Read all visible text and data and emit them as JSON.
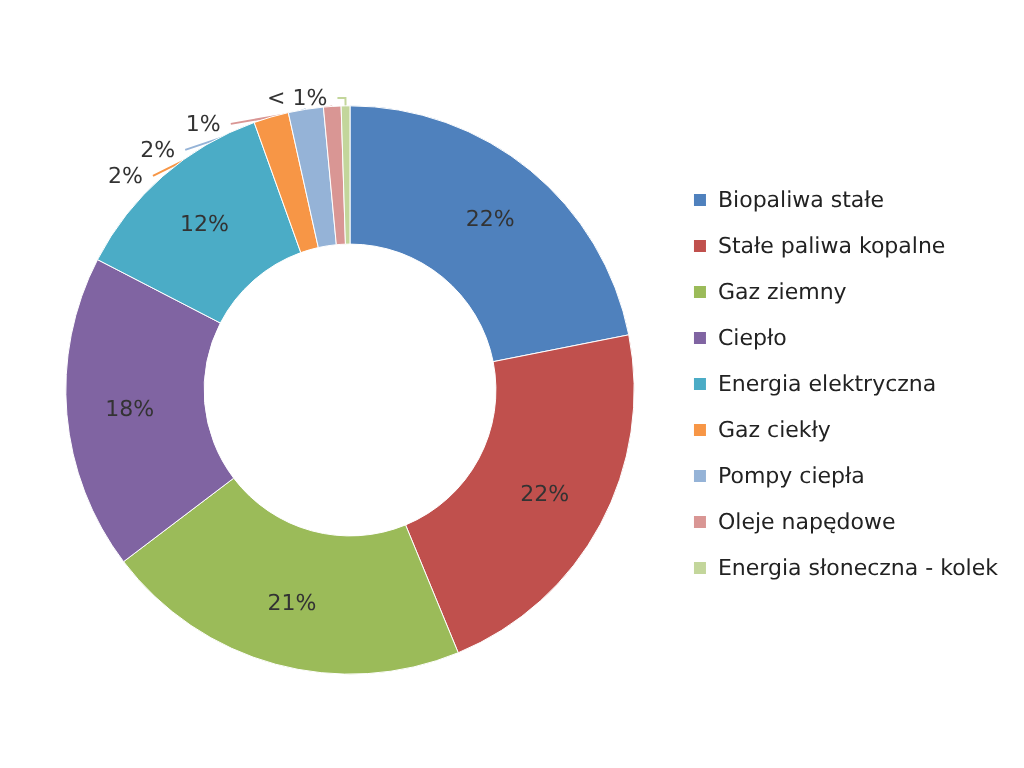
{
  "chart_data": {
    "type": "donut",
    "categories": [
      "Biopaliwa stałe",
      "Stałe paliwa kopalne",
      "Gaz ziemny",
      "Ciepło",
      "Energia elektryczna",
      "Gaz ciekły",
      "Pompy ciepła",
      "Oleje napędowe",
      "Energia słoneczna - kolek"
    ],
    "values": [
      22,
      22,
      21,
      18,
      12,
      2,
      2,
      1,
      0.5
    ],
    "value_labels": [
      "22%",
      "22%",
      "21%",
      "18%",
      "12%",
      "2%",
      "2%",
      "1%",
      "< 1%"
    ],
    "colors": [
      "#4f81bd",
      "#c0504d",
      "#9bbb59",
      "#8064a2",
      "#4bacc6",
      "#f79646",
      "#95b3d7",
      "#d99694",
      "#c3d69b"
    ],
    "legend": "right"
  }
}
